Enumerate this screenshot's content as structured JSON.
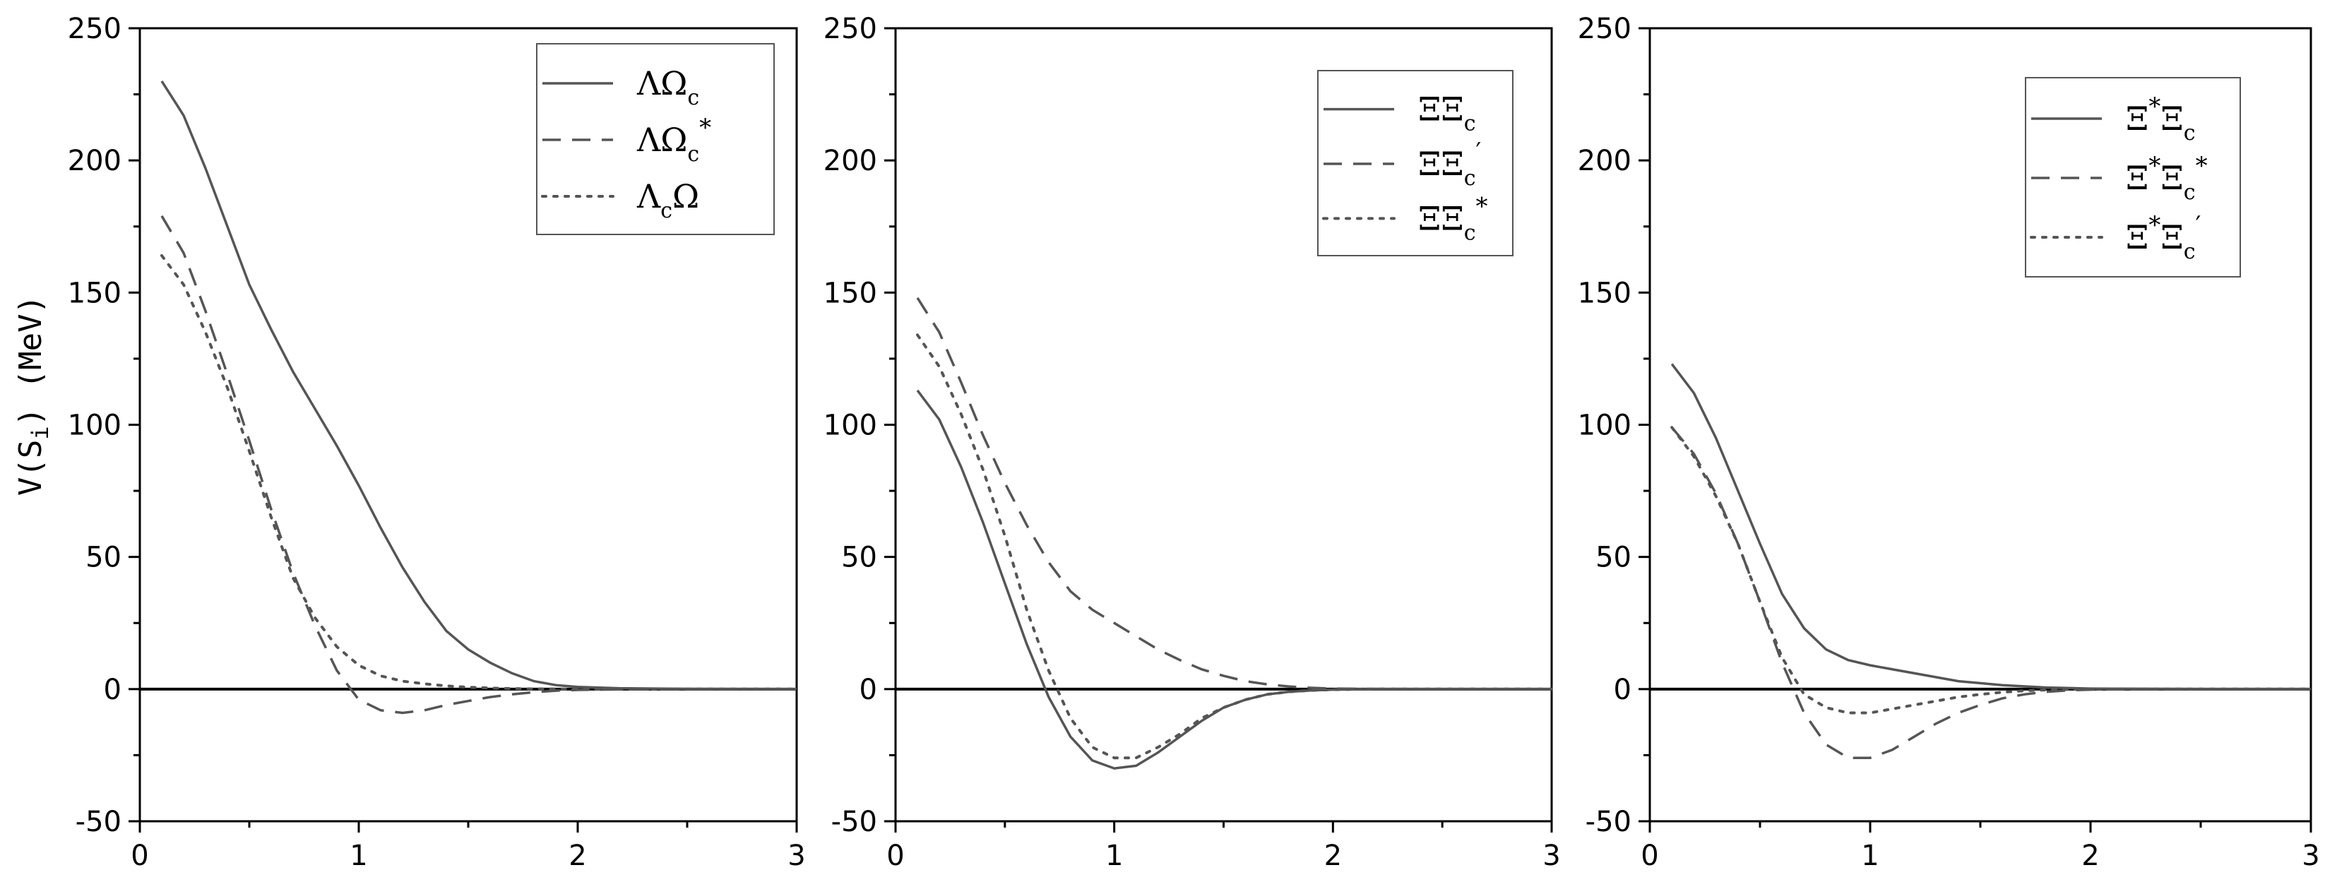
{
  "ylabel": "V(S",
  "ylabel_sub": "i",
  "ylabel_end": ") (MeV)",
  "chart_data": [
    {
      "type": "line",
      "xlim": [
        0,
        3
      ],
      "ylim": [
        -50,
        250
      ],
      "xticks": [
        0,
        1,
        2,
        3
      ],
      "yticks": [
        -50,
        0,
        50,
        100,
        150,
        200,
        250
      ],
      "zero_line": true,
      "legend_position": "top-right",
      "series": [
        {
          "style": "solid",
          "label": [
            {
              "t": "ΛΩ"
            },
            {
              "t": "c",
              "sub": true
            }
          ],
          "x": [
            0.1,
            0.2,
            0.3,
            0.4,
            0.5,
            0.6,
            0.7,
            0.8,
            0.9,
            1.0,
            1.1,
            1.2,
            1.3,
            1.4,
            1.5,
            1.6,
            1.7,
            1.8,
            1.9,
            2.0,
            2.2,
            2.5,
            3.0
          ],
          "y": [
            230,
            217,
            197,
            175,
            153,
            136,
            120,
            106,
            92,
            77,
            61,
            46,
            33,
            22,
            15,
            10,
            6,
            3,
            1.5,
            0.8,
            0.3,
            0.1,
            0
          ]
        },
        {
          "style": "dashed",
          "label": [
            {
              "t": "ΛΩ"
            },
            {
              "t": "c",
              "sub": true
            },
            {
              "t": "*",
              "sup": true
            }
          ],
          "x": [
            0.1,
            0.2,
            0.3,
            0.4,
            0.5,
            0.6,
            0.7,
            0.8,
            0.9,
            1.0,
            1.1,
            1.2,
            1.3,
            1.4,
            1.5,
            1.6,
            1.7,
            1.8,
            1.9,
            2.0,
            2.2,
            2.5,
            3.0
          ],
          "y": [
            179,
            165,
            143,
            119,
            94,
            68,
            44,
            24,
            7,
            -4,
            -8,
            -9,
            -8,
            -6,
            -4.5,
            -3,
            -2,
            -1.2,
            -0.6,
            -0.3,
            -0.1,
            0,
            0
          ]
        },
        {
          "style": "dotted",
          "label": [
            {
              "t": "Λ"
            },
            {
              "t": "c",
              "sub": true
            },
            {
              "t": "Ω"
            }
          ],
          "x": [
            0.1,
            0.2,
            0.3,
            0.4,
            0.5,
            0.6,
            0.7,
            0.8,
            0.9,
            1.0,
            1.1,
            1.2,
            1.3,
            1.4,
            1.5,
            1.6,
            1.7,
            1.8,
            2.0,
            2.5,
            3.0
          ],
          "y": [
            164,
            153,
            135,
            114,
            90,
            65,
            42,
            27,
            16,
            9,
            5,
            3,
            2,
            1.2,
            0.7,
            0.4,
            0.2,
            0.1,
            0,
            0,
            0
          ]
        }
      ]
    },
    {
      "type": "line",
      "xlim": [
        0,
        3
      ],
      "ylim": [
        -50,
        250
      ],
      "xticks": [
        0,
        1,
        2,
        3
      ],
      "yticks": [
        -50,
        0,
        50,
        100,
        150,
        200,
        250
      ],
      "zero_line": true,
      "legend_position": "top-right",
      "series": [
        {
          "style": "solid",
          "label": [
            {
              "t": "ΞΞ"
            },
            {
              "t": "c",
              "sub": true
            }
          ],
          "x": [
            0.1,
            0.2,
            0.3,
            0.4,
            0.5,
            0.6,
            0.7,
            0.8,
            0.9,
            1.0,
            1.1,
            1.2,
            1.3,
            1.4,
            1.5,
            1.6,
            1.7,
            1.8,
            1.9,
            2.0,
            2.2,
            2.5,
            3.0
          ],
          "y": [
            113,
            102,
            84,
            63,
            40,
            17,
            -3,
            -18,
            -27,
            -30,
            -29,
            -24,
            -18,
            -12,
            -7,
            -4,
            -2,
            -1,
            -0.5,
            -0.2,
            0,
            0,
            0
          ]
        },
        {
          "style": "dashed",
          "label": [
            {
              "t": "ΞΞ"
            },
            {
              "t": "c",
              "sub": true
            },
            {
              "t": "′",
              "sup": true
            }
          ],
          "x": [
            0.1,
            0.2,
            0.3,
            0.4,
            0.5,
            0.6,
            0.7,
            0.8,
            0.9,
            1.0,
            1.1,
            1.2,
            1.3,
            1.4,
            1.5,
            1.6,
            1.7,
            1.8,
            1.9,
            2.0,
            2.2,
            2.5,
            3.0
          ],
          "y": [
            148,
            135,
            116,
            96,
            78,
            62,
            48,
            37,
            30,
            25,
            20,
            15,
            11,
            7.5,
            5,
            3,
            1.8,
            1,
            0.5,
            0.2,
            0.05,
            0,
            0
          ]
        },
        {
          "style": "dotted",
          "label": [
            {
              "t": "ΞΞ"
            },
            {
              "t": "c",
              "sub": true
            },
            {
              "t": "*",
              "sup": true
            }
          ],
          "x": [
            0.1,
            0.2,
            0.3,
            0.4,
            0.5,
            0.6,
            0.7,
            0.8,
            0.9,
            1.0,
            1.1,
            1.2,
            1.3,
            1.4,
            1.5,
            1.6,
            1.7,
            1.8,
            1.9,
            2.0,
            2.2,
            2.5,
            3.0
          ],
          "y": [
            134,
            122,
            104,
            83,
            58,
            30,
            7,
            -11,
            -22,
            -26,
            -26,
            -22,
            -17,
            -11,
            -7,
            -4,
            -2,
            -1,
            -0.5,
            -0.2,
            0,
            0,
            0
          ]
        }
      ]
    },
    {
      "type": "line",
      "xlim": [
        0,
        3
      ],
      "ylim": [
        -50,
        250
      ],
      "xticks": [
        0,
        1,
        2,
        3
      ],
      "yticks": [
        -50,
        0,
        50,
        100,
        150,
        200,
        250
      ],
      "zero_line": true,
      "legend_position": "top-right",
      "series": [
        {
          "style": "solid",
          "label": [
            {
              "t": "Ξ"
            },
            {
              "t": "*",
              "sup": true
            },
            {
              "t": "Ξ"
            },
            {
              "t": "c",
              "sub": true
            }
          ],
          "x": [
            0.1,
            0.2,
            0.3,
            0.4,
            0.5,
            0.6,
            0.7,
            0.8,
            0.9,
            1.0,
            1.2,
            1.4,
            1.6,
            1.8,
            2.0,
            2.5,
            3.0
          ],
          "y": [
            123,
            112,
            95,
            75,
            55,
            36,
            23,
            15,
            11,
            9,
            6,
            3,
            1.5,
            0.6,
            0.2,
            0,
            0
          ]
        },
        {
          "style": "dashed",
          "label": [
            {
              "t": "Ξ"
            },
            {
              "t": "*",
              "sup": true
            },
            {
              "t": "Ξ"
            },
            {
              "t": "c",
              "sub": true
            },
            {
              "t": "*",
              "sup": true
            }
          ],
          "x": [
            0.1,
            0.2,
            0.3,
            0.4,
            0.5,
            0.6,
            0.7,
            0.8,
            0.9,
            1.0,
            1.1,
            1.2,
            1.3,
            1.4,
            1.5,
            1.6,
            1.7,
            1.8,
            1.9,
            2.0,
            2.2,
            2.5,
            3.0
          ],
          "y": [
            99,
            89,
            74,
            55,
            33,
            10,
            -9,
            -21,
            -26,
            -26,
            -23,
            -18,
            -13,
            -9,
            -6,
            -3.5,
            -2,
            -1,
            -0.5,
            -0.2,
            0,
            0,
            0
          ]
        },
        {
          "style": "dotted",
          "label": [
            {
              "t": "Ξ"
            },
            {
              "t": "*",
              "sup": true
            },
            {
              "t": "Ξ"
            },
            {
              "t": "c",
              "sub": true
            },
            {
              "t": "′",
              "sup": true
            }
          ],
          "x": [
            0.1,
            0.2,
            0.3,
            0.4,
            0.5,
            0.6,
            0.7,
            0.8,
            0.9,
            1.0,
            1.1,
            1.2,
            1.3,
            1.4,
            1.5,
            1.6,
            1.7,
            1.8,
            2.0,
            2.5,
            3.0
          ],
          "y": [
            99,
            88,
            73,
            55,
            33,
            12,
            -2,
            -7,
            -9,
            -9,
            -7.5,
            -6,
            -4.5,
            -3,
            -2,
            -1.2,
            -0.6,
            -0.3,
            0,
            0,
            0
          ]
        }
      ]
    }
  ]
}
